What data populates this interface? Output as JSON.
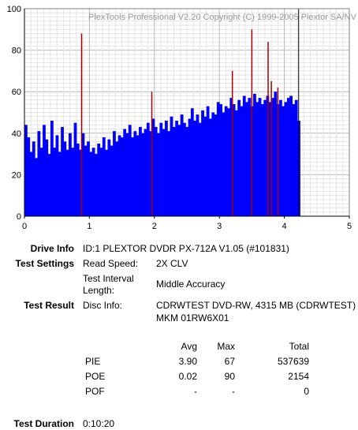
{
  "chart_data": {
    "type": "bar",
    "watermark": "PlexTools Professional V2.20 Copyright (C) 1999-2005 Plextor SA/NV",
    "xlim": [
      0,
      5
    ],
    "ylim": [
      0,
      100
    ],
    "x_ticks": [
      "0",
      "1",
      "2",
      "3",
      "4",
      "5"
    ],
    "y_ticks": [
      "0",
      "20",
      "40",
      "60",
      "80",
      "100"
    ],
    "grid": true,
    "series": [
      {
        "kind": "bars",
        "color": "#0000ff",
        "description": "PIE per position (blue bars)",
        "x": [
          0.0,
          0.04,
          0.08,
          0.12,
          0.16,
          0.2,
          0.24,
          0.28,
          0.32,
          0.36,
          0.4,
          0.44,
          0.48,
          0.52,
          0.56,
          0.6,
          0.64,
          0.68,
          0.72,
          0.76,
          0.8,
          0.84,
          0.88,
          0.92,
          0.96,
          1.0,
          1.04,
          1.08,
          1.12,
          1.16,
          1.2,
          1.24,
          1.28,
          1.32,
          1.36,
          1.4,
          1.44,
          1.48,
          1.52,
          1.56,
          1.6,
          1.64,
          1.68,
          1.72,
          1.76,
          1.8,
          1.84,
          1.88,
          1.92,
          1.96,
          2.0,
          2.04,
          2.08,
          2.12,
          2.16,
          2.2,
          2.24,
          2.28,
          2.32,
          2.36,
          2.4,
          2.44,
          2.48,
          2.52,
          2.56,
          2.6,
          2.64,
          2.68,
          2.72,
          2.76,
          2.8,
          2.84,
          2.88,
          2.92,
          2.96,
          3.0,
          3.04,
          3.08,
          3.12,
          3.16,
          3.2,
          3.24,
          3.28,
          3.32,
          3.36,
          3.4,
          3.44,
          3.48,
          3.52,
          3.56,
          3.6,
          3.64,
          3.68,
          3.72,
          3.76,
          3.8,
          3.84,
          3.88,
          3.92,
          3.96,
          4.0,
          4.04,
          4.08,
          4.12,
          4.16,
          4.2
        ],
        "values": [
          44,
          38,
          31,
          36,
          28,
          41,
          33,
          44,
          37,
          30,
          46,
          33,
          39,
          31,
          43,
          36,
          32,
          40,
          33,
          45,
          35,
          32,
          40,
          34,
          36,
          31,
          33,
          30,
          35,
          33,
          38,
          32,
          37,
          34,
          41,
          36,
          39,
          38,
          42,
          40,
          44,
          38,
          41,
          39,
          43,
          40,
          42,
          45,
          41,
          47,
          43,
          40,
          45,
          42,
          46,
          41,
          48,
          43,
          46,
          44,
          49,
          45,
          43,
          47,
          52,
          46,
          49,
          45,
          51,
          48,
          53,
          47,
          50,
          49,
          55,
          54,
          50,
          53,
          52,
          57,
          54,
          51,
          56,
          53,
          58,
          55,
          57,
          53,
          59,
          55,
          57,
          54,
          56,
          58,
          55,
          57,
          60,
          54,
          56,
          53,
          55,
          57,
          58,
          54,
          56,
          46
        ]
      },
      {
        "kind": "lines",
        "color": "#a00000",
        "description": "POE spikes (red lines)",
        "x": [
          0.88,
          1.96,
          3.2,
          3.5,
          3.75,
          3.8,
          3.9
        ],
        "values": [
          88,
          60,
          70,
          90,
          84,
          65,
          62
        ]
      }
    ],
    "marker": {
      "x": 4.22,
      "color": "#000000"
    }
  },
  "info": {
    "drive_label": "Drive Info",
    "drive_value": "ID:1 PLEXTOR DVDR PX-712A V1.05 (#101831)",
    "settings_label": "Test Settings",
    "read_speed_label": "Read Speed:",
    "read_speed_value": "2X CLV",
    "interval_label_1": "Test Interval",
    "interval_label_2": "Length:",
    "interval_value": "Middle Accuracy",
    "result_label": "Test Result",
    "disc_info_label": "Disc Info:",
    "disc_info_line1": "CDRWTEST DVD-RW, 4315 MB (CDRWTEST)",
    "disc_info_line2": "MKM 01RW6X01",
    "duration_label": "Test Duration",
    "duration_value": "0:10:20"
  },
  "stats": {
    "headers": [
      "Avg",
      "Max",
      "Total"
    ],
    "rows": [
      {
        "name": "PIE",
        "avg": "3.90",
        "max": "67",
        "total": "537639"
      },
      {
        "name": "POE",
        "avg": "0.02",
        "max": "90",
        "total": "2154"
      },
      {
        "name": "POF",
        "avg": "-",
        "max": "-",
        "total": "0"
      }
    ]
  }
}
